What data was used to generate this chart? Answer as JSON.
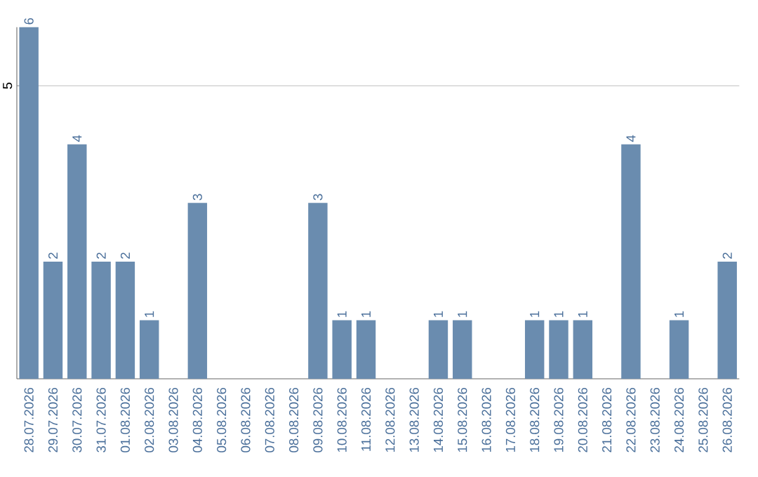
{
  "chart_data": {
    "type": "bar",
    "categories": [
      "28.07.2026",
      "29.07.2026",
      "30.07.2026",
      "31.07.2026",
      "01.08.2026",
      "02.08.2026",
      "03.08.2026",
      "04.08.2026",
      "05.08.2026",
      "06.08.2026",
      "07.08.2026",
      "08.08.2026",
      "09.08.2026",
      "10.08.2026",
      "11.08.2026",
      "12.08.2026",
      "13.08.2026",
      "14.08.2026",
      "15.08.2026",
      "16.08.2026",
      "17.08.2026",
      "18.08.2026",
      "19.08.2026",
      "20.08.2026",
      "21.08.2026",
      "22.08.2026",
      "23.08.2026",
      "24.08.2026",
      "25.08.2026",
      "26.08.2026"
    ],
    "values": [
      6,
      2,
      4,
      2,
      2,
      1,
      0,
      3,
      0,
      0,
      0,
      0,
      3,
      1,
      1,
      0,
      0,
      1,
      1,
      0,
      0,
      1,
      1,
      1,
      0,
      4,
      0,
      1,
      0,
      2
    ],
    "value_labels": [
      "6",
      "2",
      "4",
      "2",
      "2",
      "1",
      null,
      "3",
      null,
      null,
      null,
      null,
      "3",
      "1",
      "1",
      null,
      null,
      "1",
      "1",
      null,
      null,
      "1",
      "1",
      "1",
      null,
      "4",
      null,
      "1",
      null,
      "2"
    ],
    "color": "#6a8caf",
    "ylim": [
      0,
      6
    ],
    "yticks": [
      5
    ],
    "grid": "y"
  }
}
